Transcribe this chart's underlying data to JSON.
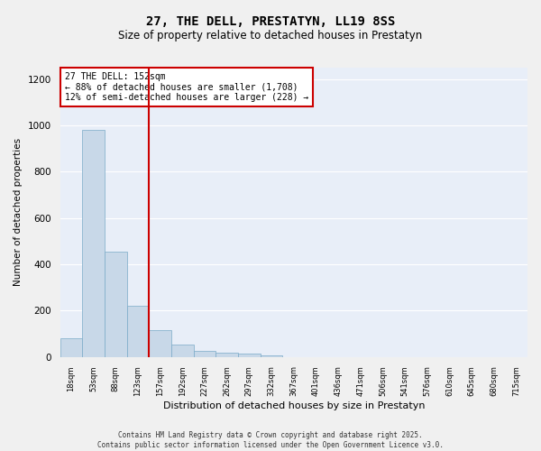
{
  "title": "27, THE DELL, PRESTATYN, LL19 8SS",
  "subtitle": "Size of property relative to detached houses in Prestatyn",
  "xlabel": "Distribution of detached houses by size in Prestatyn",
  "ylabel": "Number of detached properties",
  "bar_color": "#c8d8e8",
  "bar_edge_color": "#7aaac8",
  "background_color": "#e8eef8",
  "grid_color": "#ffffff",
  "annotation_line_color": "#cc0000",
  "annotation_box_color": "#cc0000",
  "annotation_line1": "27 THE DELL: 152sqm",
  "annotation_line2": "← 88% of detached houses are smaller (1,708)",
  "annotation_line3": "12% of semi-detached houses are larger (228) →",
  "footer": "Contains HM Land Registry data © Crown copyright and database right 2025.\nContains public sector information licensed under the Open Government Licence v3.0.",
  "bin_labels": [
    "18sqm",
    "53sqm",
    "88sqm",
    "123sqm",
    "157sqm",
    "192sqm",
    "227sqm",
    "262sqm",
    "297sqm",
    "332sqm",
    "367sqm",
    "401sqm",
    "436sqm",
    "471sqm",
    "506sqm",
    "541sqm",
    "576sqm",
    "610sqm",
    "645sqm",
    "680sqm",
    "715sqm"
  ],
  "bar_values": [
    80,
    980,
    455,
    220,
    115,
    55,
    25,
    20,
    15,
    8,
    0,
    0,
    0,
    0,
    0,
    0,
    0,
    0,
    0,
    0,
    0
  ],
  "marker_bin_index": 4,
  "ylim": [
    0,
    1250
  ],
  "yticks": [
    0,
    200,
    400,
    600,
    800,
    1000,
    1200
  ],
  "fig_width": 6.0,
  "fig_height": 5.0,
  "fig_bg_color": "#f0f0f0",
  "title_fontsize": 10,
  "subtitle_fontsize": 8.5
}
